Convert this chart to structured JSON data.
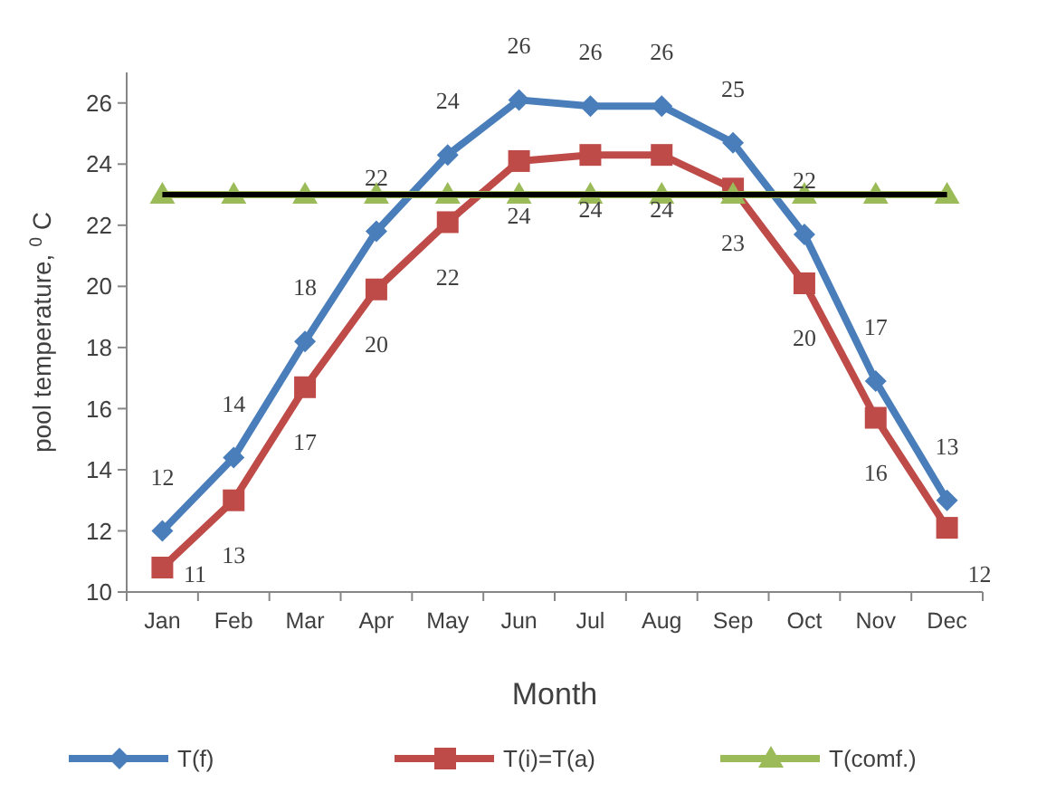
{
  "chart_data": {
    "type": "line",
    "xlabel": "Month",
    "ylabel": "pool temperature, $^{0}$ C",
    "categories": [
      "Jan",
      "Feb",
      "Mar",
      "Apr",
      "May",
      "Jun",
      "Jul",
      "Aug",
      "Sep",
      "Oct",
      "Nov",
      "Dec"
    ],
    "series": [
      {
        "name": "T(f)",
        "color": "#4a7ebb",
        "marker": "diamond",
        "values": [
          12,
          14.4,
          18.2,
          21.8,
          24.3,
          26.1,
          25.9,
          25.9,
          24.7,
          21.7,
          16.9,
          13
        ],
        "value_labels": [
          "12",
          "14",
          "18",
          "22",
          "24",
          "26",
          "26",
          "26",
          "25",
          "22",
          "17",
          "13"
        ]
      },
      {
        "name": "T(i)=T(a)",
        "color": "#be4b48",
        "marker": "square",
        "values": [
          10.8,
          13,
          16.7,
          19.9,
          22.1,
          24.1,
          24.3,
          24.3,
          23.2,
          20.1,
          15.7,
          12.1
        ],
        "value_labels": [
          "11",
          "13",
          "17",
          "20",
          "22",
          "24",
          "24",
          "24",
          "23",
          "20",
          "16",
          "12"
        ]
      },
      {
        "name": "T(comf.)",
        "color": "#9bbb59",
        "marker": "triangle",
        "values": [
          23,
          23,
          23,
          23,
          23,
          23,
          23,
          23,
          23,
          23,
          23,
          23
        ]
      }
    ],
    "ref_lines": [
      {
        "axis": "y",
        "value": 23,
        "color": "#000000"
      }
    ],
    "ylim": [
      10,
      27
    ],
    "yticks": [
      10,
      12,
      14,
      16,
      18,
      20,
      22,
      24,
      26
    ],
    "grid": false,
    "legend": "bottom"
  }
}
